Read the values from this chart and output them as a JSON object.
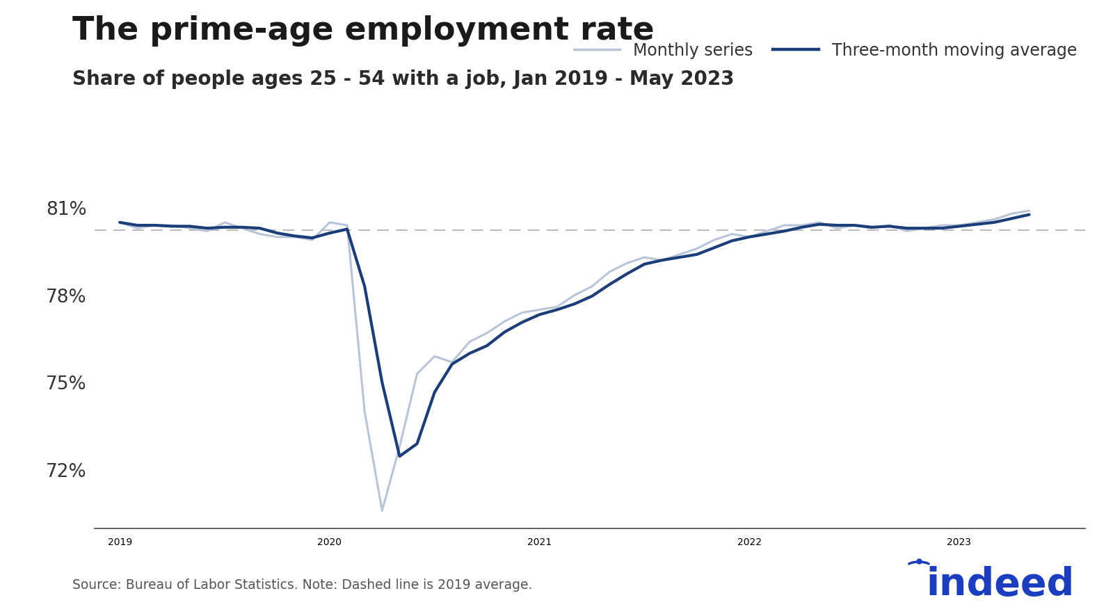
{
  "title": "The prime-age employment rate",
  "subtitle": "Share of people ages 25 - 54 with a job, Jan 2019 - May 2023",
  "legend_monthly": "Monthly series",
  "legend_moving_avg": "Three-month moving average",
  "source_note": "Source: Bureau of Labor Statistics. Note: Dashed line is 2019 average.",
  "ylim_bottom": 70.0,
  "ylim_top": 82.3,
  "yticks": [
    72,
    75,
    78,
    81
  ],
  "color_monthly": "#b8c4d8",
  "color_moving_avg": "#1b3d7a",
  "color_dashed": "#bbbbbb",
  "background_color": "#ffffff",
  "monthly_data": [
    80.5,
    80.3,
    80.4,
    80.4,
    80.3,
    80.2,
    80.5,
    80.3,
    80.1,
    80.0,
    80.0,
    79.9,
    80.5,
    80.4,
    74.0,
    70.6,
    72.8,
    75.3,
    75.9,
    75.7,
    76.4,
    76.7,
    77.1,
    77.4,
    77.5,
    77.6,
    78.0,
    78.3,
    78.8,
    79.1,
    79.3,
    79.2,
    79.4,
    79.6,
    79.9,
    80.1,
    80.0,
    80.2,
    80.4,
    80.4,
    80.5,
    80.3,
    80.4,
    80.3,
    80.4,
    80.2,
    80.3,
    80.4,
    80.4,
    80.5,
    80.6,
    80.8,
    80.9
  ],
  "xtick_years": [
    2019,
    2020,
    2021,
    2022,
    2023
  ]
}
